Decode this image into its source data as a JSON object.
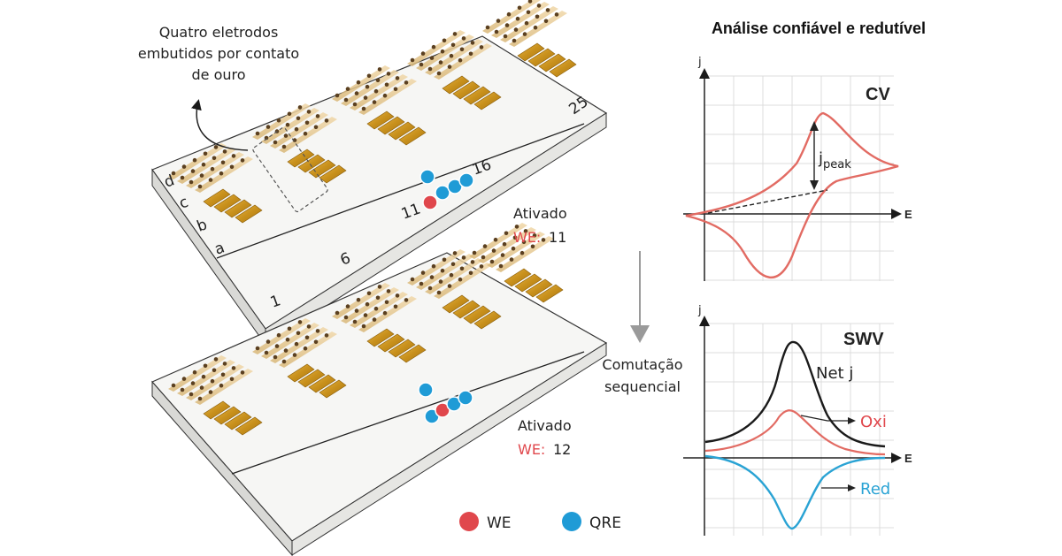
{
  "annotation": {
    "line1": "Quatro eletrodos",
    "line2": "embutidos por contato",
    "line3": "de ouro"
  },
  "chip_labels": {
    "rows": [
      "d",
      "c",
      "b",
      "a"
    ],
    "n1": "1",
    "n6": "6",
    "n11": "11",
    "n16": "16",
    "n25": "25"
  },
  "status_top": {
    "label": "Ativado",
    "we_prefix": "WE:",
    "we_value": "11"
  },
  "status_bottom": {
    "label": "Ativado",
    "we_prefix": "WE:",
    "we_value": "12"
  },
  "switch_label": {
    "line1": "Comutação",
    "line2": "sequencial"
  },
  "legend": {
    "we": {
      "label": "WE",
      "color": "#e0474c"
    },
    "qre": {
      "label": "QRE",
      "color": "#1f9bd6"
    }
  },
  "header": "Análise confiável e redutível",
  "cv_plot": {
    "title": "CV",
    "y_axis": "j",
    "x_axis": "E",
    "peak_label_main": "j",
    "peak_label_sub": "peak",
    "color": "#e26b63"
  },
  "swv_plot": {
    "title": "SWV",
    "y_axis": "j",
    "x_axis": "E",
    "net_label": "Net j",
    "oxi_label": "Oxi",
    "red_label": "Red",
    "net_color": "#1a1a1a",
    "oxi_color": "#e26b63",
    "red_color": "#2aa3d4"
  }
}
